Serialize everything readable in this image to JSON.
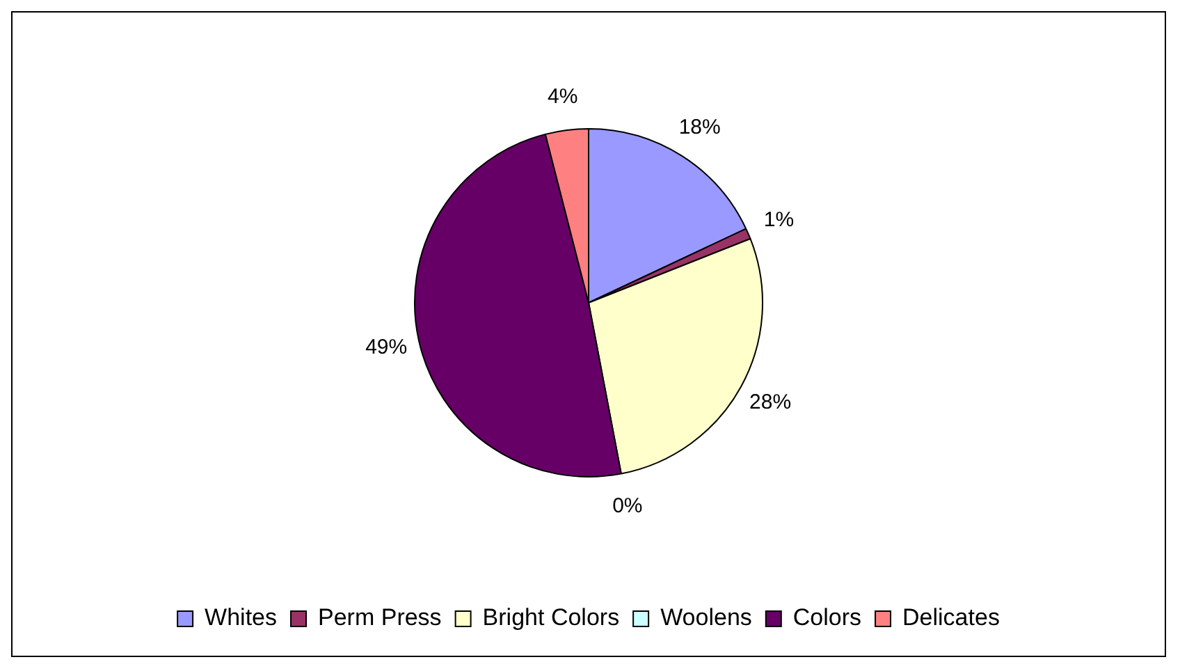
{
  "chart_data": {
    "type": "pie",
    "categories": [
      "Whites",
      "Perm Press",
      "Bright Colors",
      "Woolens",
      "Colors",
      "Delicates"
    ],
    "values": [
      18,
      1,
      28,
      0,
      49,
      4
    ],
    "colors": [
      "#9999ff",
      "#993366",
      "#ffffcc",
      "#ccffff",
      "#660066",
      "#ff8080"
    ],
    "value_labels": [
      "18%",
      "1%",
      "28%",
      "0%",
      "49%",
      "4%"
    ],
    "legend": "bottom"
  }
}
